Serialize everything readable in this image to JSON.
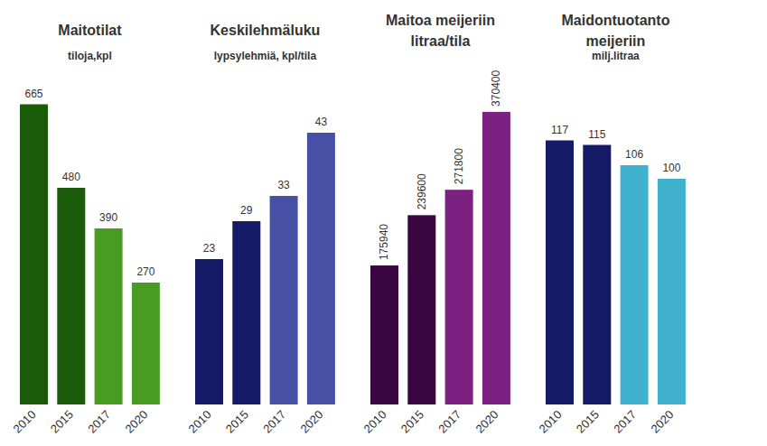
{
  "chart_data": [
    {
      "type": "bar",
      "title": "Maitotilat",
      "subtitle": "tiloja,kpl",
      "categories": [
        "2010",
        "2015",
        "2017",
        "2020"
      ],
      "values": [
        665,
        480,
        390,
        270
      ],
      "colors": [
        "#1a5c0a",
        "#1a5c0a",
        "#4a9b21",
        "#4a9b21"
      ],
      "ylim": [
        0,
        700
      ],
      "data_labels": true,
      "tick_labels": "x",
      "grid": false
    },
    {
      "type": "bar",
      "title": "Keskilehmäluku",
      "subtitle": "lypsylehmiä, kpl/tila",
      "categories": [
        "2010",
        "2015",
        "2017",
        "2020"
      ],
      "values": [
        23,
        29,
        33,
        43
      ],
      "colors": [
        "#151a66",
        "#151a66",
        "#4651a6",
        "#4651a6"
      ],
      "ylim": [
        0,
        50
      ],
      "data_labels": true,
      "tick_labels": "x",
      "grid": false
    },
    {
      "type": "bar",
      "title": "Maitoa meijeriin\nlitraa/tila",
      "categories": [
        "2010",
        "2015",
        "2017",
        "2020"
      ],
      "values": [
        175940,
        239600,
        271800,
        370400
      ],
      "colors": [
        "#3a0640",
        "#3a0640",
        "#7a2181",
        "#7a2181"
      ],
      "ylim": [
        0,
        400000
      ],
      "data_labels": true,
      "tick_labels": "x",
      "grid": false
    },
    {
      "type": "bar",
      "title": "Maidontuotanto\nmeijeriin",
      "subtitle": "milj.litraa",
      "categories": [
        "2010",
        "2015",
        "2017",
        "2020"
      ],
      "values": [
        117,
        115,
        106,
        100
      ],
      "colors": [
        "#151a66",
        "#151a66",
        "#3fb1cf",
        "#3fb1cf"
      ],
      "ylim": [
        0,
        140
      ],
      "data_labels": true,
      "tick_labels": "x",
      "grid": false
    }
  ]
}
